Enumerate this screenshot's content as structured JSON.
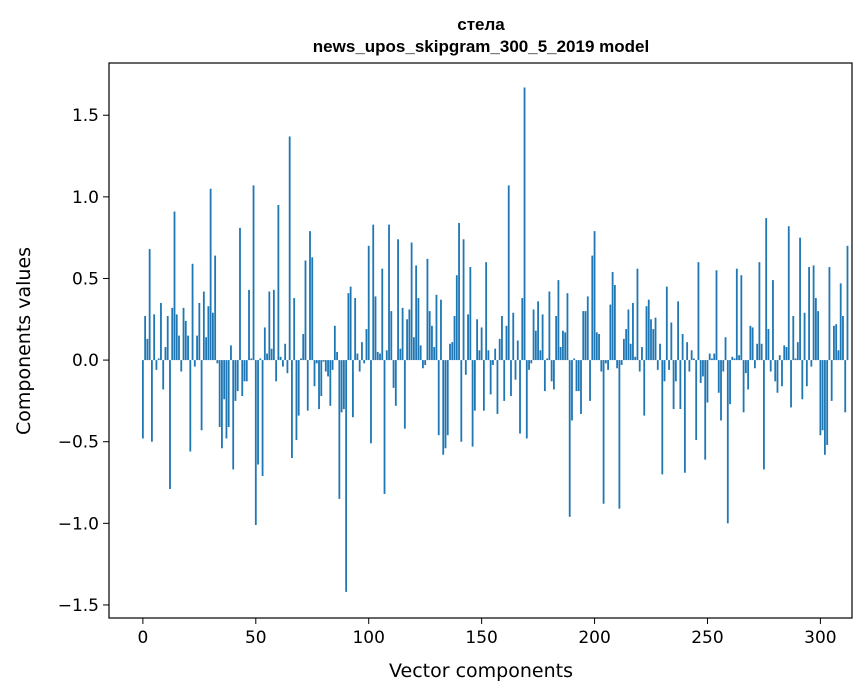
{
  "chart_data": {
    "type": "bar",
    "title": "стела",
    "subtitle": "news_upos_skipgram_300_5_2019 model",
    "xlabel": "Vector components",
    "ylabel": "Components values",
    "xlim": [
      -15,
      314
    ],
    "ylim": [
      -1.58,
      1.82
    ],
    "xticks": [
      0,
      50,
      100,
      150,
      200,
      250,
      300
    ],
    "xtick_labels": [
      "0",
      "50",
      "100",
      "150",
      "200",
      "250",
      "300"
    ],
    "yticks": [
      -1.5,
      -1.0,
      -0.5,
      0.0,
      0.5,
      1.0,
      1.5
    ],
    "ytick_labels": [
      "−1.5",
      "−1.0",
      "−0.5",
      "0.0",
      "0.5",
      "1.0",
      "1.5"
    ],
    "grid": false,
    "bar_color": "#1f77b4",
    "values": [
      -0.48,
      0.27,
      0.13,
      0.68,
      -0.5,
      0.28,
      -0.06,
      0.01,
      0.35,
      -0.18,
      0.08,
      0.27,
      -0.79,
      0.32,
      0.91,
      0.28,
      0.15,
      -0.07,
      0.32,
      0.24,
      0.15,
      -0.56,
      0.59,
      -0.04,
      0.15,
      0.35,
      -0.43,
      0.42,
      0.14,
      0.33,
      1.05,
      0.29,
      0.64,
      -0.02,
      -0.41,
      -0.54,
      -0.24,
      -0.48,
      -0.41,
      0.09,
      -0.67,
      -0.25,
      -0.19,
      0.81,
      -0.22,
      -0.13,
      -0.13,
      0.43,
      0.01,
      1.07,
      -1.01,
      -0.64,
      0.01,
      -0.71,
      0.2,
      0.04,
      0.42,
      0.07,
      0.43,
      -0.13,
      0.95,
      0.02,
      -0.04,
      0.1,
      -0.08,
      1.37,
      -0.6,
      0.38,
      -0.49,
      -0.34,
      0.01,
      0.16,
      0.61,
      -0.31,
      0.79,
      0.63,
      -0.16,
      -0.02,
      -0.3,
      -0.22,
      -0.01,
      -0.07,
      -0.1,
      -0.28,
      -0.06,
      0.21,
      0.05,
      -0.85,
      -0.32,
      -0.3,
      -1.42,
      0.41,
      0.45,
      -0.35,
      0.38,
      0.04,
      -0.07,
      0.11,
      -0.02,
      0.19,
      0.7,
      -0.51,
      0.83,
      0.39,
      0.05,
      0.04,
      0.56,
      -0.82,
      0.06,
      0.83,
      0.3,
      -0.17,
      -0.28,
      0.74,
      0.07,
      0.32,
      -0.42,
      0.25,
      0.31,
      0.72,
      0.14,
      0.58,
      0.38,
      0.09,
      -0.05,
      -0.03,
      0.62,
      0.3,
      0.21,
      0.08,
      0.4,
      -0.46,
      0.37,
      -0.58,
      -0.54,
      -0.46,
      0.1,
      0.11,
      0.27,
      0.52,
      0.84,
      -0.5,
      0.74,
      -0.09,
      0.28,
      0.57,
      -0.53,
      -0.31,
      0.25,
      0.06,
      0.2,
      -0.31,
      0.6,
      0.06,
      -0.21,
      -0.03,
      0.07,
      -0.33,
      0.13,
      0.27,
      -0.25,
      0.21,
      1.07,
      -0.22,
      0.29,
      -0.12,
      0.12,
      -0.45,
      0.38,
      1.67,
      -0.48,
      -0.06,
      -0.02,
      0.31,
      0.18,
      0.36,
      0.06,
      0.28,
      -0.19,
      0.01,
      0.42,
      -0.13,
      -0.18,
      0.27,
      0.49,
      0.08,
      0.18,
      0.17,
      0.41,
      -0.96,
      -0.37,
      0.01,
      -0.19,
      -0.19,
      -0.33,
      0.3,
      0.3,
      0.39,
      -0.25,
      0.64,
      0.79,
      0.17,
      0.16,
      -0.07,
      -0.88,
      -0.02,
      -0.06,
      0.34,
      0.54,
      0.46,
      -0.05,
      -0.91,
      -0.03,
      0.13,
      0.19,
      0.31,
      0.1,
      0.35,
      0.02,
      0.56,
      -0.07,
      0.08,
      -0.34,
      0.33,
      0.37,
      0.25,
      0.19,
      0.26,
      -0.06,
      0.1,
      -0.7,
      -0.13,
      0.45,
      -0.06,
      0.23,
      -0.3,
      -0.13,
      0.36,
      -0.3,
      0.16,
      -0.69,
      0.11,
      -0.07,
      0.06,
      0.01,
      -0.49,
      0.6,
      -0.14,
      -0.1,
      -0.61,
      -0.26,
      0.04,
      0.01,
      0.04,
      0.55,
      -0.2,
      -0.37,
      -0.07,
      0.14,
      -1.0,
      -0.27,
      0.02,
      0.01,
      0.56,
      0.03,
      0.52,
      -0.32,
      -0.08,
      -0.18,
      0.21,
      0.2,
      -0.05,
      0.1,
      0.6,
      0.1,
      -0.67,
      0.87,
      0.19,
      -0.07,
      0.49,
      -0.13,
      -0.2,
      0.03,
      -0.16,
      0.09,
      0.08,
      0.82,
      -0.29,
      0.27,
      0.01,
      0.11,
      0.75,
      -0.24,
      0.29,
      -0.16,
      0.57,
      -0.04,
      0.58,
      0.38,
      0.3,
      -0.46,
      -0.43,
      -0.58,
      -0.52,
      0.57,
      -0.25,
      0.21,
      0.22,
      0.06,
      0.47,
      0.27,
      -0.32,
      0.7
    ]
  }
}
